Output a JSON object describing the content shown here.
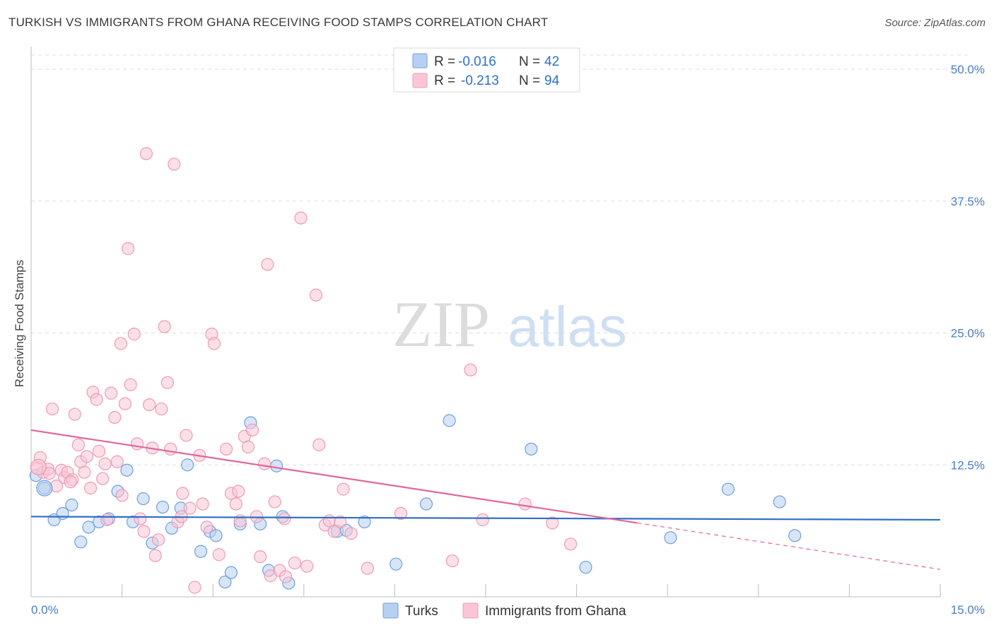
{
  "chart_data": {
    "type": "scatter",
    "title": "TURKISH VS IMMIGRANTS FROM GHANA RECEIVING FOOD STAMPS CORRELATION CHART",
    "source": "Source: ZipAtlas.com",
    "ylabel": "Receiving Food Stamps",
    "xlim": [
      0,
      15
    ],
    "ylim": [
      0,
      50
    ],
    "x_tick_labels": [
      "0.0%",
      "15.0%"
    ],
    "y_ticks": [
      12.5,
      25.0,
      37.5,
      50.0
    ],
    "y_tick_labels": [
      "12.5%",
      "25.0%",
      "37.5%",
      "50.0%"
    ],
    "grid": true,
    "legend_position": "top-center",
    "watermark": {
      "zip": "ZIP",
      "atlas": "atlas"
    },
    "stats": [
      {
        "r_label": "R =",
        "r_value": "-0.016",
        "n_label": "N =",
        "n_value": "42"
      },
      {
        "r_label": "R =",
        "r_value": "-0.213",
        "n_label": "N =",
        "n_value": "94"
      }
    ],
    "series": [
      {
        "name": "Turks",
        "color": "#6fa0dd",
        "fill": "#b7d0f1",
        "trend_color": "#2f6fc4",
        "trend": {
          "x0": 0,
          "y0": 7.6,
          "x1": 15,
          "y1": 7.3
        },
        "points": [
          [
            0.08,
            11.5
          ],
          [
            0.22,
            10.3
          ],
          [
            0.38,
            7.3
          ],
          [
            0.52,
            7.9
          ],
          [
            0.67,
            8.7
          ],
          [
            0.82,
            5.2
          ],
          [
            0.95,
            6.6
          ],
          [
            1.12,
            7.1
          ],
          [
            1.28,
            7.4
          ],
          [
            1.43,
            10.0
          ],
          [
            1.58,
            12.0
          ],
          [
            1.68,
            7.1
          ],
          [
            1.85,
            9.3
          ],
          [
            2.0,
            5.1
          ],
          [
            2.17,
            8.5
          ],
          [
            2.32,
            6.5
          ],
          [
            2.47,
            8.4
          ],
          [
            2.58,
            12.5
          ],
          [
            2.8,
            4.3
          ],
          [
            2.95,
            6.2
          ],
          [
            3.05,
            5.8
          ],
          [
            3.2,
            1.4
          ],
          [
            3.3,
            2.3
          ],
          [
            3.45,
            6.9
          ],
          [
            3.62,
            16.5
          ],
          [
            3.78,
            6.9
          ],
          [
            3.92,
            2.5
          ],
          [
            4.05,
            12.4
          ],
          [
            4.15,
            7.6
          ],
          [
            4.25,
            1.3
          ],
          [
            5.05,
            6.2
          ],
          [
            5.2,
            6.3
          ],
          [
            5.5,
            7.1
          ],
          [
            6.02,
            3.1
          ],
          [
            6.52,
            8.8
          ],
          [
            6.9,
            16.7
          ],
          [
            8.25,
            14.0
          ],
          [
            9.15,
            2.8
          ],
          [
            10.55,
            5.6
          ],
          [
            11.5,
            10.2
          ],
          [
            12.35,
            9.0
          ],
          [
            12.6,
            5.8
          ]
        ]
      },
      {
        "name": "Immigrants from Ghana",
        "color": "#ee9ab5",
        "fill": "#f9c6d6",
        "trend_color": "#e0679a",
        "trend": {
          "x0": 0,
          "y0": 15.8,
          "x1": 10.0,
          "y1": 7.0,
          "dash_x1": 15,
          "dash_y1": 2.6
        },
        "points": [
          [
            0.1,
            12.2
          ],
          [
            0.15,
            13.2
          ],
          [
            0.2,
            11.8
          ],
          [
            0.28,
            12.1
          ],
          [
            0.35,
            17.8
          ],
          [
            0.42,
            10.5
          ],
          [
            0.5,
            12.0
          ],
          [
            0.55,
            11.3
          ],
          [
            0.6,
            11.8
          ],
          [
            0.68,
            11.1
          ],
          [
            0.72,
            17.3
          ],
          [
            0.78,
            14.4
          ],
          [
            0.82,
            12.8
          ],
          [
            0.88,
            11.8
          ],
          [
            0.92,
            13.3
          ],
          [
            0.98,
            10.3
          ],
          [
            1.02,
            19.4
          ],
          [
            1.08,
            18.7
          ],
          [
            1.12,
            13.8
          ],
          [
            1.18,
            11.2
          ],
          [
            1.22,
            12.6
          ],
          [
            1.32,
            19.3
          ],
          [
            1.38,
            17.0
          ],
          [
            1.42,
            12.8
          ],
          [
            1.48,
            24.0
          ],
          [
            1.55,
            18.3
          ],
          [
            1.6,
            33.0
          ],
          [
            1.64,
            20.1
          ],
          [
            1.7,
            24.9
          ],
          [
            1.75,
            14.5
          ],
          [
            1.8,
            7.4
          ],
          [
            1.86,
            6.2
          ],
          [
            1.9,
            42.0
          ],
          [
            1.95,
            18.2
          ],
          [
            2.0,
            14.1
          ],
          [
            2.05,
            3.9
          ],
          [
            2.1,
            5.4
          ],
          [
            2.15,
            17.8
          ],
          [
            2.2,
            25.6
          ],
          [
            2.25,
            20.3
          ],
          [
            2.3,
            14.0
          ],
          [
            2.36,
            41.0
          ],
          [
            2.42,
            7.1
          ],
          [
            2.5,
            9.8
          ],
          [
            2.56,
            15.3
          ],
          [
            2.62,
            8.4
          ],
          [
            2.7,
            0.9
          ],
          [
            2.78,
            13.4
          ],
          [
            2.83,
            8.8
          ],
          [
            2.9,
            6.6
          ],
          [
            2.98,
            24.9
          ],
          [
            3.02,
            24.0
          ],
          [
            3.1,
            4.0
          ],
          [
            3.22,
            14.0
          ],
          [
            3.3,
            9.8
          ],
          [
            3.38,
            8.8
          ],
          [
            3.45,
            7.2
          ],
          [
            3.52,
            15.2
          ],
          [
            3.58,
            14.2
          ],
          [
            3.65,
            15.8
          ],
          [
            3.72,
            7.6
          ],
          [
            3.78,
            3.8
          ],
          [
            3.85,
            12.6
          ],
          [
            3.9,
            31.5
          ],
          [
            3.95,
            2.0
          ],
          [
            4.02,
            9.0
          ],
          [
            4.1,
            2.5
          ],
          [
            4.2,
            1.9
          ],
          [
            4.35,
            3.2
          ],
          [
            4.45,
            35.9
          ],
          [
            4.55,
            2.9
          ],
          [
            4.7,
            28.6
          ],
          [
            4.75,
            14.4
          ],
          [
            4.85,
            6.8
          ],
          [
            4.92,
            7.2
          ],
          [
            5.0,
            6.2
          ],
          [
            5.15,
            10.2
          ],
          [
            5.28,
            6.0
          ],
          [
            5.55,
            2.7
          ],
          [
            6.1,
            7.9
          ],
          [
            6.95,
            3.4
          ],
          [
            7.25,
            21.5
          ],
          [
            7.45,
            7.3
          ],
          [
            8.15,
            8.8
          ],
          [
            8.6,
            7.0
          ],
          [
            8.9,
            5.0
          ],
          [
            3.42,
            10.0
          ],
          [
            1.5,
            9.6
          ],
          [
            0.65,
            10.9
          ],
          [
            2.48,
            7.6
          ],
          [
            4.18,
            7.4
          ],
          [
            1.25,
            7.3
          ],
          [
            0.3,
            11.7
          ],
          [
            5.1,
            7.1
          ]
        ]
      }
    ]
  }
}
